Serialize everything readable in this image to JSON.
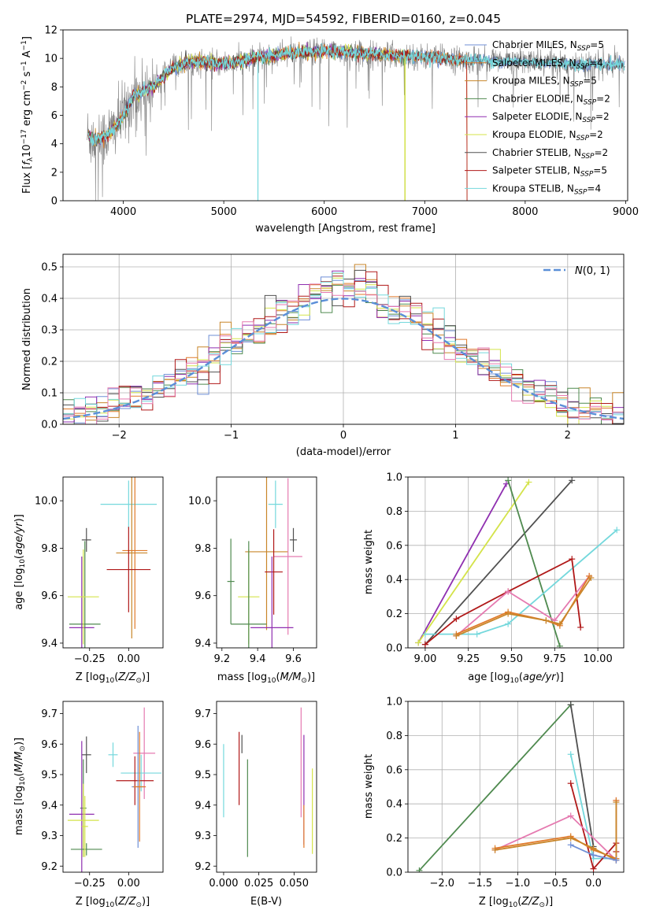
{
  "figure_title": "PLATE=2974, MJD=54592, FIBERID=0160, z=0.045",
  "colors": {
    "chabrier_miles": "#6f8fd6",
    "salpeter_miles": "#e07a2a",
    "kroupa_miles": "#c8862a",
    "chabrier_elodie": "#4f8a4f",
    "salpeter_elodie": "#8f2fb0",
    "kroupa_elodie": "#d4e34a",
    "chabrier_stelib": "#505050",
    "salpeter_stelib": "#b01818",
    "kroupa_stelib": "#74d8dc",
    "pink": "#e57ab0",
    "gaussian": "#5b8fd8",
    "grid": "#b0b0b0"
  },
  "chart_data": [
    {
      "id": "spectrum",
      "type": "line",
      "title": "",
      "xlabel": "wavelength [Angstrom, rest frame]",
      "ylabel": "Flux [f_λ10^-17 erg cm^-2 s^-1 A^-1]",
      "xlim": [
        3400,
        9020
      ],
      "ylim": [
        0,
        12
      ],
      "xticks": [
        4000,
        5000,
        6000,
        7000,
        8000,
        9000
      ],
      "yticks": [
        0,
        2,
        4,
        6,
        8,
        10,
        12
      ],
      "grid": false,
      "legend_position": "top-right",
      "series": [
        {
          "name": "Chabrier MILES, N_SSP=5",
          "color_key": "chabrier_miles"
        },
        {
          "name": "Salpeter MILES, N_SSP=4",
          "color_key": "salpeter_miles"
        },
        {
          "name": "Kroupa MILES, N_SSP=5",
          "color_key": "kroupa_miles"
        },
        {
          "name": "Chabrier ELODIE, N_SSP=2",
          "color_key": "chabrier_elodie"
        },
        {
          "name": "Salpeter ELODIE, N_SSP=2",
          "color_key": "salpeter_elodie"
        },
        {
          "name": "Kroupa ELODIE, N_SSP=2",
          "color_key": "kroupa_elodie"
        },
        {
          "name": "Chabrier STELIB, N_SSP=2",
          "color_key": "chabrier_stelib"
        },
        {
          "name": "Salpeter STELIB, N_SSP=5",
          "color_key": "salpeter_stelib"
        },
        {
          "name": "Kroupa STELIB, N_SSP=4",
          "color_key": "kroupa_stelib"
        }
      ],
      "continuum": {
        "x": [
          3650,
          3700,
          3800,
          3900,
          4000,
          4100,
          4200,
          4300,
          4400,
          4500,
          4700,
          5000,
          5300,
          5600,
          6000,
          6500,
          7000,
          7400,
          7800,
          8200,
          8600,
          8900
        ],
        "y": [
          4.6,
          4.3,
          4.4,
          5.0,
          6.0,
          7.3,
          7.7,
          8.0,
          8.7,
          9.4,
          9.8,
          9.6,
          10.0,
          10.3,
          10.5,
          10.3,
          10.1,
          9.9,
          9.8,
          9.7,
          9.6,
          9.6
        ]
      }
    },
    {
      "id": "residuals",
      "type": "histogram",
      "xlabel": "(data-model)/error",
      "ylabel": "Normed distribution",
      "xlim": [
        -2.5,
        2.5
      ],
      "ylim": [
        0,
        0.54
      ],
      "xticks": [
        -2,
        -1,
        0,
        1,
        2
      ],
      "yticks": [
        0.0,
        0.1,
        0.2,
        0.3,
        0.4,
        0.5
      ],
      "grid": true,
      "legend": "N(0,1)",
      "legend_position": "top-right",
      "bin_width": 0.1
    },
    {
      "id": "age-vs-Z",
      "type": "errorbar",
      "xlabel": "Z [log10(Z/Z⊙)]",
      "ylabel": "age  [log10(age/yr)]",
      "xlim": [
        -0.42,
        0.22
      ],
      "ylim": [
        9.38,
        10.1
      ],
      "xticks": [
        -0.25,
        0.0
      ],
      "yticks": [
        9.4,
        9.6,
        9.8,
        10.0
      ],
      "points": [
        {
          "color": "kroupa_stelib",
          "x": 0.0,
          "xerr": 0.18,
          "y": 9.985,
          "yerr": 0.1
        },
        {
          "color": "chabrier_stelib",
          "x": -0.27,
          "xerr": 0.03,
          "y": 9.835,
          "yerr": 0.05
        },
        {
          "color": "kroupa_miles",
          "x": 0.02,
          "xerr": 0.1,
          "y": 9.78,
          "yerr": 0.36
        },
        {
          "color": "salpeter_miles",
          "x": 0.04,
          "xerr": 0.08,
          "y": 9.79,
          "yerr": 0.33
        },
        {
          "color": "salpeter_stelib",
          "x": 0.0,
          "xerr": 0.14,
          "y": 9.71,
          "yerr": 0.18
        },
        {
          "color": "chabrier_elodie",
          "x": -0.28,
          "xerr": 0.1,
          "y": 9.48,
          "yerr": 0.35
        },
        {
          "color": "salpeter_elodie",
          "x": -0.3,
          "xerr": 0.08,
          "y": 9.465,
          "yerr": 0.3
        },
        {
          "color": "kroupa_elodie",
          "x": -0.29,
          "xerr": 0.1,
          "y": 9.595,
          "yerr": 0.2
        }
      ]
    },
    {
      "id": "age-vs-mass",
      "type": "errorbar",
      "xlabel": "mass [log10(M/M⊙)]",
      "ylabel": "",
      "xlim": [
        9.17,
        9.73
      ],
      "ylim": [
        9.38,
        10.1
      ],
      "xticks": [
        9.2,
        9.4,
        9.6
      ],
      "yticks": [
        9.4,
        9.6,
        9.8,
        10.0
      ],
      "points": [
        {
          "color": "kroupa_stelib",
          "x": 9.5,
          "xerr": 0.04,
          "y": 9.985,
          "yerr": 0.1
        },
        {
          "color": "chabrier_stelib",
          "x": 9.6,
          "xerr": 0.02,
          "y": 9.835,
          "yerr": 0.05
        },
        {
          "color": "kroupa_miles",
          "x": 9.45,
          "xerr": 0.12,
          "y": 9.785,
          "yerr": 0.33
        },
        {
          "color": "pink",
          "x": 9.57,
          "xerr": 0.08,
          "y": 9.765,
          "yerr": 0.33
        },
        {
          "color": "salpeter_stelib",
          "x": 9.49,
          "xerr": 0.05,
          "y": 9.7,
          "yerr": 0.18
        },
        {
          "color": "chabrier_elodie",
          "x": 9.25,
          "xerr": 0.02,
          "y": 9.66,
          "yerr": 0.18
        },
        {
          "color": "kroupa_elodie",
          "x": 9.35,
          "xerr": 0.06,
          "y": 9.595,
          "yerr": 0.2
        },
        {
          "color": "chabrier_elodie",
          "x": 9.35,
          "xerr": 0.1,
          "y": 9.48,
          "yerr": 0.35
        },
        {
          "color": "salpeter_elodie",
          "x": 9.48,
          "xerr": 0.12,
          "y": 9.465,
          "yerr": 0.3
        }
      ]
    },
    {
      "id": "massweight-vs-age",
      "type": "line",
      "xlabel": "age  [log10(age/yr)]",
      "ylabel": "mass weight",
      "xlim": [
        8.9,
        10.15
      ],
      "ylim": [
        0.0,
        1.0
      ],
      "xticks": [
        9.0,
        9.25,
        9.5,
        9.75,
        10.0
      ],
      "yticks": [
        0.0,
        0.2,
        0.4,
        0.6,
        0.8,
        1.0
      ],
      "grid": true,
      "series": [
        {
          "color": "salpeter_elodie",
          "x": [
            8.96,
            9.47
          ],
          "y": [
            0.03,
            0.96
          ]
        },
        {
          "color": "kroupa_elodie",
          "x": [
            8.96,
            9.6
          ],
          "y": [
            0.03,
            0.97
          ]
        },
        {
          "color": "chabrier_stelib",
          "x": [
            9.0,
            9.85
          ],
          "y": [
            0.02,
            0.98
          ]
        },
        {
          "color": "chabrier_elodie",
          "x": [
            9.48,
            9.78
          ],
          "y": [
            0.98,
            0.01
          ]
        },
        {
          "color": "kroupa_stelib",
          "x": [
            9.0,
            9.3,
            9.48,
            10.11
          ],
          "y": [
            0.08,
            0.08,
            0.14,
            0.69
          ]
        },
        {
          "color": "salpeter_stelib",
          "x": [
            9.0,
            9.18,
            9.48,
            9.85,
            9.9
          ],
          "y": [
            0.02,
            0.17,
            0.33,
            0.52,
            0.12
          ]
        },
        {
          "color": "pink",
          "x": [
            9.18,
            9.48,
            9.75,
            9.95
          ],
          "y": [
            0.07,
            0.33,
            0.16,
            0.42
          ]
        },
        {
          "color": "salpeter_miles",
          "x": [
            9.18,
            9.48,
            9.7,
            9.78,
            9.95
          ],
          "y": [
            0.08,
            0.21,
            0.16,
            0.13,
            0.42
          ]
        },
        {
          "color": "kroupa_miles",
          "x": [
            9.18,
            9.48,
            9.7,
            9.78,
            9.96
          ],
          "y": [
            0.07,
            0.2,
            0.16,
            0.14,
            0.41
          ]
        }
      ]
    },
    {
      "id": "mass-vs-Z",
      "type": "errorbar",
      "xlabel": "Z [log10(Z/Z⊙)]",
      "ylabel": "mass [log10(M/M⊙)]",
      "xlim": [
        -0.42,
        0.22
      ],
      "ylim": [
        9.18,
        9.74
      ],
      "xticks": [
        -0.25,
        0.0
      ],
      "yticks": [
        9.2,
        9.3,
        9.4,
        9.5,
        9.6,
        9.7
      ],
      "points": [
        {
          "color": "pink",
          "x": 0.1,
          "xerr": 0.07,
          "y": 9.57,
          "yerr": 0.15
        },
        {
          "color": "chabrier_stelib",
          "x": -0.27,
          "xerr": 0.03,
          "y": 9.565,
          "yerr": 0.06
        },
        {
          "color": "kroupa_stelib",
          "x": -0.1,
          "xerr": 0.03,
          "y": 9.565,
          "yerr": 0.04
        },
        {
          "color": "kroupa_stelib",
          "x": 0.08,
          "xerr": 0.13,
          "y": 9.505,
          "yerr": 0.06
        },
        {
          "color": "salpeter_stelib",
          "x": 0.04,
          "xerr": 0.12,
          "y": 9.48,
          "yerr": 0.08
        },
        {
          "color": "chabrier_miles",
          "x": 0.06,
          "xerr": 0.04,
          "y": 9.46,
          "yerr": 0.2
        },
        {
          "color": "salpeter_miles",
          "x": 0.07,
          "xerr": 0.04,
          "y": 9.46,
          "yerr": 0.18
        },
        {
          "color": "chabrier_elodie",
          "x": -0.29,
          "xerr": 0.02,
          "y": 9.39,
          "yerr": 0.16
        },
        {
          "color": "salpeter_elodie",
          "x": -0.3,
          "xerr": 0.08,
          "y": 9.37,
          "yerr": 0.24
        },
        {
          "color": "kroupa_elodie",
          "x": -0.29,
          "xerr": 0.1,
          "y": 9.35,
          "yerr": 0.12
        },
        {
          "color": "chabrier_elodie",
          "x": -0.27,
          "xerr": 0.1,
          "y": 9.255,
          "yerr": 0.02
        },
        {
          "color": "kroupa_elodie",
          "x": -0.28,
          "xerr": 0.02,
          "y": 9.33,
          "yerr": 0.1
        }
      ]
    },
    {
      "id": "mass-vs-EBV",
      "type": "errorbar",
      "xlabel": "E(B-V)",
      "ylabel": "",
      "xlim": [
        -0.005,
        0.066
      ],
      "ylim": [
        9.18,
        9.74
      ],
      "xticks": [
        0.0,
        0.025,
        0.05
      ],
      "yticks": [
        9.2,
        9.3,
        9.4,
        9.5,
        9.6,
        9.7
      ],
      "points": [
        {
          "color": "kroupa_stelib",
          "x": 0.0,
          "xerr": 0,
          "y": 9.48,
          "yerr": 0.12
        },
        {
          "color": "salpeter_stelib",
          "x": 0.011,
          "xerr": 0,
          "y": 9.52,
          "yerr": 0.12
        },
        {
          "color": "chabrier_stelib",
          "x": 0.013,
          "xerr": 0,
          "y": 9.6,
          "yerr": 0.03
        },
        {
          "color": "chabrier_elodie",
          "x": 0.017,
          "xerr": 0,
          "y": 9.39,
          "yerr": 0.16
        },
        {
          "color": "pink",
          "x": 0.055,
          "xerr": 0,
          "y": 9.54,
          "yerr": 0.18
        },
        {
          "color": "salpeter_elodie",
          "x": 0.057,
          "xerr": 0,
          "y": 9.45,
          "yerr": 0.18
        },
        {
          "color": "salpeter_miles",
          "x": 0.057,
          "xerr": 0,
          "y": 9.33,
          "yerr": 0.07
        },
        {
          "color": "kroupa_elodie",
          "x": 0.063,
          "xerr": 0,
          "y": 9.38,
          "yerr": 0.14
        }
      ]
    },
    {
      "id": "massweight-vs-Z",
      "type": "line",
      "xlabel": "Z [log10(Z/Z⊙)]",
      "ylabel": "mass weight",
      "xlim": [
        -2.45,
        0.4
      ],
      "ylim": [
        0.0,
        1.0
      ],
      "xticks": [
        -2.0,
        -1.5,
        -1.0,
        -0.5,
        0.0
      ],
      "yticks": [
        0.0,
        0.2,
        0.4,
        0.6,
        0.8,
        1.0
      ],
      "grid": true,
      "series": [
        {
          "color": "chabrier_elodie",
          "x": [
            -2.3,
            -0.3
          ],
          "y": [
            0.01,
            0.98
          ]
        },
        {
          "color": "chabrier_stelib",
          "x": [
            -0.3,
            0.0
          ],
          "y": [
            0.98,
            0.15
          ]
        },
        {
          "color": "kroupa_stelib",
          "x": [
            -0.3,
            0.0,
            0.3
          ],
          "y": [
            0.69,
            0.08,
            0.08
          ]
        },
        {
          "color": "salpeter_stelib",
          "x": [
            -0.3,
            0.0,
            0.3,
            0.3
          ],
          "y": [
            0.52,
            0.02,
            0.17,
            0.12
          ]
        },
        {
          "color": "pink",
          "x": [
            -1.3,
            -0.3,
            0.3,
            0.3
          ],
          "y": [
            0.13,
            0.33,
            0.07,
            0.42
          ]
        },
        {
          "color": "salpeter_miles",
          "x": [
            -1.3,
            -0.3,
            0.0,
            0.3,
            0.3
          ],
          "y": [
            0.14,
            0.21,
            0.13,
            0.08,
            0.42
          ]
        },
        {
          "color": "kroupa_miles",
          "x": [
            -1.3,
            -0.3,
            0.0,
            0.3,
            0.3
          ],
          "y": [
            0.13,
            0.2,
            0.14,
            0.07,
            0.41
          ]
        },
        {
          "color": "chabrier_miles",
          "x": [
            -0.3,
            0.0,
            0.3
          ],
          "y": [
            0.16,
            0.1,
            0.07
          ]
        }
      ]
    }
  ]
}
